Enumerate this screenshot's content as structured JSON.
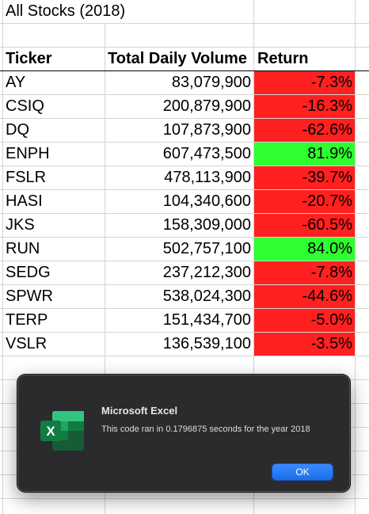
{
  "sheet": {
    "title": "All Stocks (2018)",
    "headers": {
      "ticker": "Ticker",
      "volume": "Total Daily Volume",
      "return": "Return"
    },
    "rows": [
      {
        "ticker": "AY",
        "volume": "83,079,900",
        "return": "-7.3%",
        "status": "negative"
      },
      {
        "ticker": "CSIQ",
        "volume": "200,879,900",
        "return": "-16.3%",
        "status": "negative"
      },
      {
        "ticker": "DQ",
        "volume": "107,873,900",
        "return": "-62.6%",
        "status": "negative"
      },
      {
        "ticker": "ENPH",
        "volume": "607,473,500",
        "return": "81.9%",
        "status": "positive"
      },
      {
        "ticker": "FSLR",
        "volume": "478,113,900",
        "return": "-39.7%",
        "status": "negative"
      },
      {
        "ticker": "HASI",
        "volume": "104,340,600",
        "return": "-20.7%",
        "status": "negative"
      },
      {
        "ticker": "JKS",
        "volume": "158,309,000",
        "return": "-60.5%",
        "status": "negative"
      },
      {
        "ticker": "RUN",
        "volume": "502,757,100",
        "return": "84.0%",
        "status": "positive"
      },
      {
        "ticker": "SEDG",
        "volume": "237,212,300",
        "return": "-7.8%",
        "status": "negative"
      },
      {
        "ticker": "SPWR",
        "volume": "538,024,300",
        "return": "-44.6%",
        "status": "negative"
      },
      {
        "ticker": "TERP",
        "volume": "151,434,700",
        "return": "-5.0%",
        "status": "negative"
      },
      {
        "ticker": "VSLR",
        "volume": "136,539,100",
        "return": "-3.5%",
        "status": "negative"
      }
    ],
    "colors": {
      "negative": "#ff2020",
      "positive": "#2eff2e",
      "gridline": "#d4d4d4"
    }
  },
  "dialog": {
    "app_name": "Microsoft Excel",
    "message": "This code ran in 0.1796875 seconds for the year 2018",
    "ok_label": "OK",
    "icon": "excel-app-icon",
    "colors": {
      "background": "#2b2b2d",
      "button": "#1a6ee8"
    }
  }
}
